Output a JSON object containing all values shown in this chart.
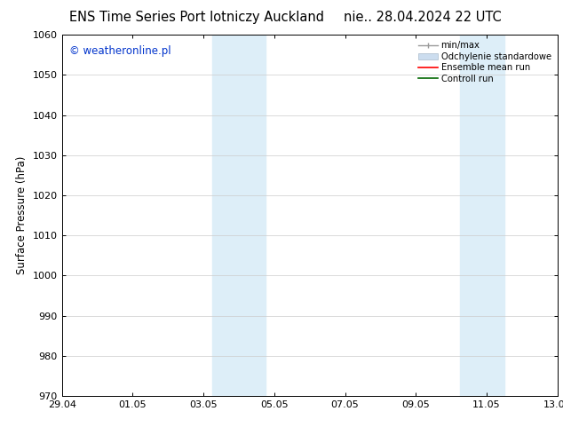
{
  "title_left": "ENS Time Series Port lotniczy Auckland",
  "title_right": "nie.. 28.04.2024 22 UTC",
  "ylabel": "Surface Pressure (hPa)",
  "ylim": [
    970,
    1060
  ],
  "yticks": [
    970,
    980,
    990,
    1000,
    1010,
    1020,
    1030,
    1040,
    1050,
    1060
  ],
  "xlim_start": 0,
  "xlim_end": 14,
  "xtick_labels": [
    "29.04",
    "01.05",
    "03.05",
    "05.05",
    "07.05",
    "09.05",
    "11.05",
    "13.05"
  ],
  "xtick_positions": [
    0,
    2,
    4,
    6,
    8,
    10,
    12,
    14
  ],
  "shaded_regions": [
    {
      "xmin": 4.25,
      "xmax": 5.75
    },
    {
      "xmin": 11.25,
      "xmax": 12.5
    }
  ],
  "shaded_color": "#ddeef8",
  "watermark_text": "© weatheronline.pl",
  "watermark_color": "#0033cc",
  "legend_items": [
    {
      "label": "min/max"
    },
    {
      "label": "Odchylenie standardowe"
    },
    {
      "label": "Ensemble mean run"
    },
    {
      "label": "Controll run"
    }
  ],
  "background_color": "#ffffff",
  "grid_color": "#cccccc",
  "title_fontsize": 10.5,
  "axis_label_fontsize": 8.5,
  "tick_fontsize": 8,
  "watermark_fontsize": 8.5
}
